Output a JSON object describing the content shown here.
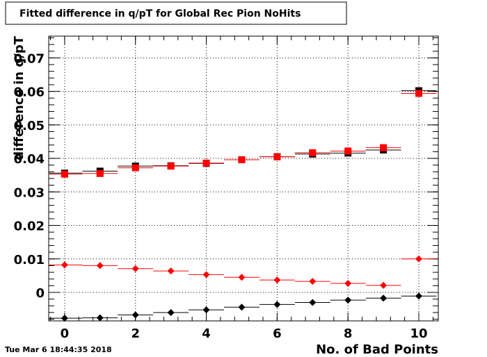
{
  "chart_data": {
    "type": "scatter",
    "title": "Fitted difference in q/pT for Global Rec Pion NoHits",
    "xlabel": "No. of Bad Points",
    "ylabel": "difference in q/pT",
    "xlim": [
      -0.45,
      10.55
    ],
    "ylim": [
      -0.0085,
      0.0765
    ],
    "x_ticks": [
      0,
      2,
      4,
      6,
      8,
      10
    ],
    "x_tick_labels": [
      "0",
      "2",
      "4",
      "6",
      "8",
      "10"
    ],
    "y_ticks": [
      0,
      0.01,
      0.02,
      0.03,
      0.04,
      0.05,
      0.06,
      0.07
    ],
    "y_tick_labels": [
      "0",
      "0.01",
      "0.02",
      "0.03",
      "0.04",
      "0.05",
      "0.06",
      "0.07"
    ],
    "grid": true,
    "x": [
      0,
      1,
      2,
      3,
      4,
      5,
      6,
      7,
      8,
      9,
      10
    ],
    "series": [
      {
        "marker": "square",
        "color": "#000000",
        "values": [
          0.0356,
          0.0362,
          0.0377,
          0.0378,
          0.0385,
          0.0396,
          0.0405,
          0.0413,
          0.0416,
          0.0425,
          0.0602
        ]
      },
      {
        "marker": "square",
        "color": "#ff0000",
        "values": [
          0.0353,
          0.0355,
          0.0372,
          0.0377,
          0.0386,
          0.0396,
          0.0405,
          0.0417,
          0.0422,
          0.0432,
          0.0594
        ]
      },
      {
        "marker": "diamond",
        "color": "#000000",
        "values": [
          -0.0077,
          -0.0076,
          -0.0067,
          -0.006,
          -0.0052,
          -0.0044,
          -0.0036,
          -0.003,
          -0.0023,
          -0.0017,
          -0.0011
        ]
      },
      {
        "marker": "diamond",
        "color": "#ff0000",
        "values": [
          0.0082,
          0.008,
          0.0071,
          0.0064,
          0.0053,
          0.0045,
          0.0037,
          0.0033,
          0.0027,
          0.0021,
          0.01
        ]
      }
    ]
  },
  "timestamp": "Tue Mar  6 18:44:35 2018"
}
